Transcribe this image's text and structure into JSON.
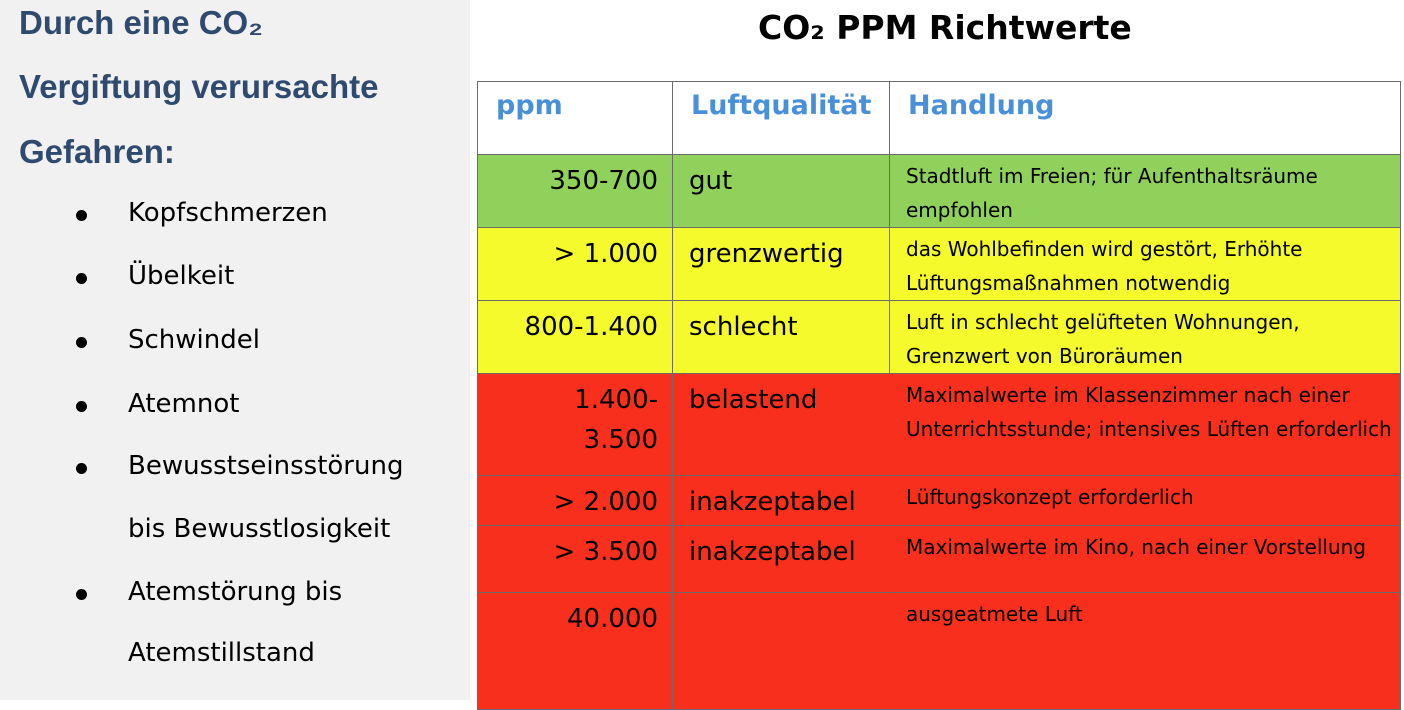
{
  "left": {
    "heading_lines": [
      "Durch eine CO₂",
      "Vergiftung verursachte",
      "Gefahren:"
    ],
    "bullets": [
      "Kopfschmerzen",
      "Übelkeit",
      "Schwindel",
      "Atemnot",
      "Bewusstseinsstörung",
      "bis Bewusstlosigkeit",
      "Atemstörung bis",
      "Atemstillstand"
    ]
  },
  "table": {
    "title": "CO₂ PPM Richtwerte",
    "headers": [
      "ppm",
      "Luftqualität",
      "Handlung"
    ],
    "rows": [
      {
        "ppm": "350-700",
        "quality": "gut",
        "action": "Stadtluft im Freien; für Aufenthaltsräume empfohlen",
        "color": "#8fd15a"
      },
      {
        "ppm": "> 1.000",
        "quality": "grenzwertig",
        "action": "das Wohlbefinden wird gestört, Erhöhte Lüftungsmaßnahmen notwendig",
        "color": "#f5fa2c"
      },
      {
        "ppm": "800-1.400",
        "quality": "schlecht",
        "action": "Luft in schlecht gelüfteten Wohnungen, Grenzwert von Büroräumen",
        "color": "#f5fa2c"
      },
      {
        "ppm": "1.400-3.500",
        "quality": "belastend",
        "action": "Maximalwerte im Klassenzimmer nach einer Unterrichtsstunde; intensives Lüften erforderlich",
        "color": "#f82f1c"
      },
      {
        "ppm": "> 2.000",
        "quality": "inakzeptabel",
        "action": "Lüftungskonzept erforderlich",
        "color": "#f82f1c"
      },
      {
        "ppm": "> 3.500",
        "quality": "inakzeptabel",
        "action": "Maximalwerte im Kino, nach einer Vorstellung",
        "color": "#f82f1c"
      },
      {
        "ppm": "40.000",
        "quality": "",
        "action": "ausgeatmete Luft",
        "color": "#f82f1c"
      }
    ]
  }
}
